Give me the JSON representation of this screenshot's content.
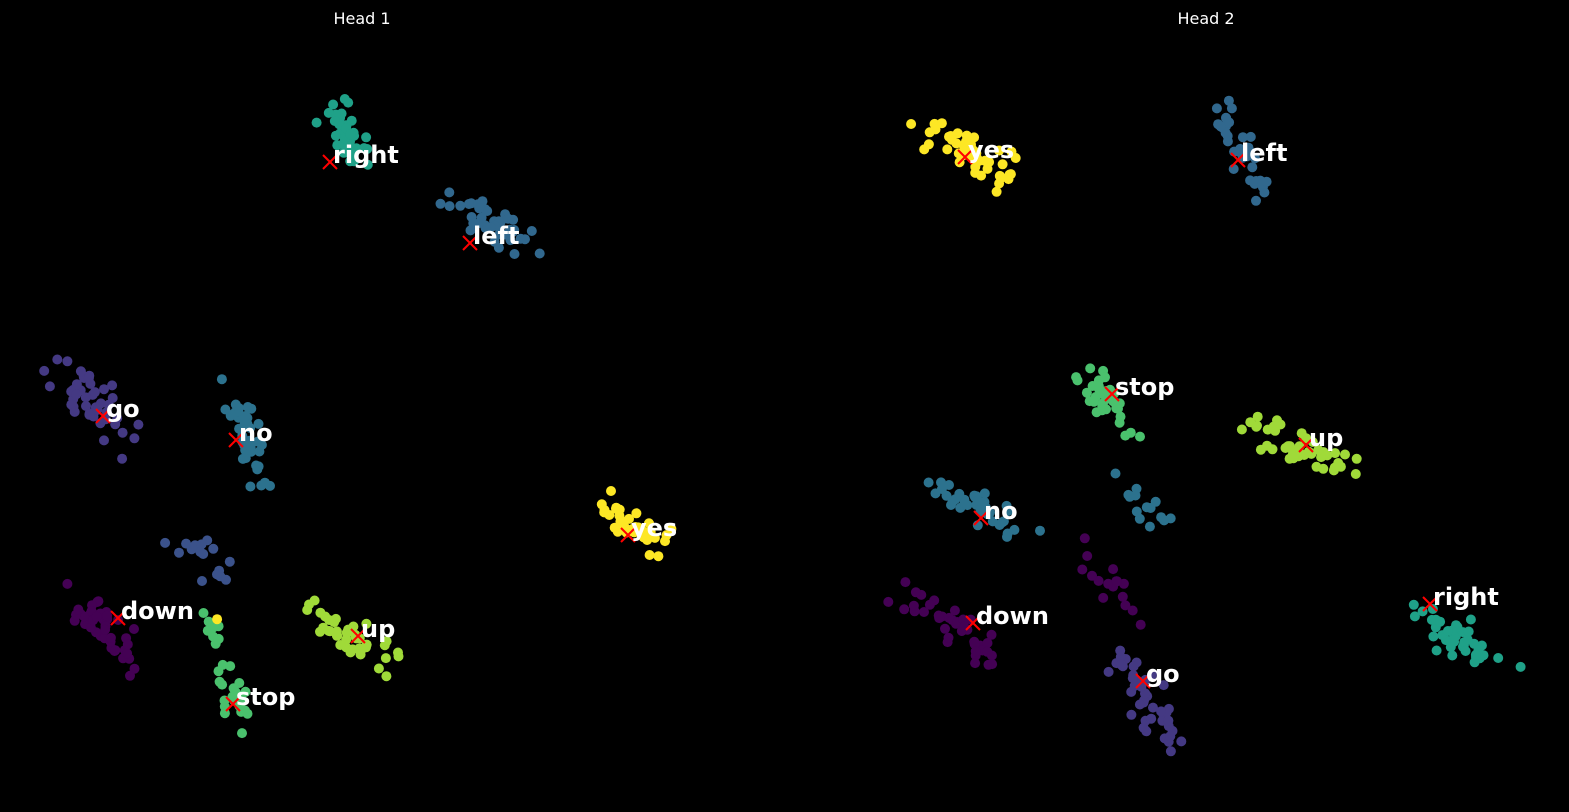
{
  "background": "#000000",
  "chart_data": [
    {
      "type": "scatter",
      "title": "Head 1",
      "xlabel": "",
      "ylabel": "",
      "grid": false,
      "axes_visible": false,
      "label_color": "#ffffff",
      "centroid_marker_color": "#ff0000",
      "clusters": [
        {
          "label": "right",
          "color": "#1fa188",
          "centroid": [
            330,
            162
          ],
          "tail": "s",
          "count": 40,
          "region": [
            300,
            60,
            395,
            205
          ]
        },
        {
          "label": "left",
          "color": "#31688e",
          "centroid": [
            470,
            243
          ],
          "tail": "s",
          "count": 40,
          "region": [
            430,
            185,
            548,
            260
          ]
        },
        {
          "label": "go",
          "color": "#443983",
          "centroid": [
            103,
            416
          ],
          "tail": "s",
          "count": 45,
          "region": [
            38,
            332,
            148,
            470
          ]
        },
        {
          "label": "no",
          "color": "#2c728e",
          "centroid": [
            236,
            440
          ],
          "tail": "s",
          "count": 40,
          "region": [
            218,
            357,
            270,
            510
          ]
        },
        {
          "label": "yes",
          "color": "#fde725",
          "centroid": [
            628,
            535
          ],
          "tail": "s",
          "count": 40,
          "region": [
            578,
            485,
            688,
            568
          ]
        },
        {
          "label": "down",
          "color": "#440154",
          "centroid": [
            118,
            618
          ],
          "tail": "s",
          "count": 45,
          "region": [
            56,
            578,
            150,
            678
          ]
        },
        {
          "label": "up",
          "color": "#a0da39",
          "centroid": [
            358,
            636
          ],
          "tail": "s",
          "count": 40,
          "region": [
            285,
            590,
            422,
            688
          ]
        },
        {
          "label": "stop",
          "color": "#4ac16d",
          "centroid": [
            233,
            704
          ],
          "tail": "s",
          "count": 35,
          "region": [
            203,
            590,
            255,
            770
          ]
        }
      ],
      "stray_points": [
        {
          "color": "#3b528b",
          "count": 16,
          "region": [
            150,
            515,
            262,
            605
          ]
        },
        {
          "color": "#fde725",
          "count": 1,
          "region": [
            213,
            613,
            220,
            620
          ]
        }
      ]
    },
    {
      "type": "scatter",
      "title": "Head 2",
      "xlabel": "",
      "ylabel": "",
      "grid": false,
      "axes_visible": false,
      "label_color": "#ffffff",
      "centroid_marker_color": "#ff0000",
      "clusters": [
        {
          "label": "yes",
          "color": "#fde725",
          "centroid": [
            965,
            157
          ],
          "tail": "s",
          "count": 50,
          "region": [
            900,
            105,
            1043,
            200
          ]
        },
        {
          "label": "left",
          "color": "#31688e",
          "centroid": [
            1238,
            160
          ],
          "tail": "s",
          "count": 35,
          "region": [
            1200,
            60,
            1280,
            225
          ]
        },
        {
          "label": "stop",
          "color": "#4ac16d",
          "centroid": [
            1112,
            394
          ],
          "tail": "s",
          "count": 35,
          "region": [
            1070,
            337,
            1140,
            453
          ]
        },
        {
          "label": "up",
          "color": "#a0da39",
          "centroid": [
            1306,
            445
          ],
          "tail": "s",
          "count": 45,
          "region": [
            1200,
            402,
            1395,
            492
          ]
        },
        {
          "label": "no",
          "color": "#2c728e",
          "centroid": [
            981,
            518
          ],
          "tail": "s",
          "count": 40,
          "region": [
            893,
            470,
            1078,
            550
          ]
        },
        {
          "label": "down",
          "color": "#440154",
          "centroid": [
            973,
            623
          ],
          "tail": "s",
          "count": 40,
          "region": [
            882,
            580,
            1025,
            672
          ]
        },
        {
          "label": "right",
          "color": "#1fa188",
          "centroid": [
            1430,
            604
          ],
          "tail": "s",
          "count": 40,
          "region": [
            1388,
            590,
            1532,
            686
          ]
        },
        {
          "label": "go",
          "color": "#443983",
          "centroid": [
            1143,
            681
          ],
          "tail": "s",
          "count": 45,
          "region": [
            1100,
            635,
            1195,
            770
          ]
        }
      ],
      "stray_points": [
        {
          "color": "#2c728e",
          "count": 14,
          "region": [
            1098,
            468,
            1178,
            540
          ]
        },
        {
          "color": "#440154",
          "count": 16,
          "region": [
            1068,
            520,
            1145,
            640
          ]
        }
      ]
    }
  ]
}
